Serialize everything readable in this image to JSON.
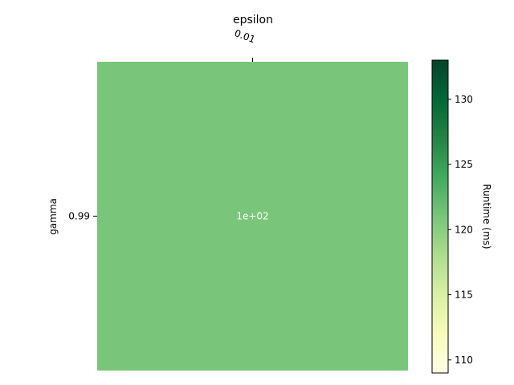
{
  "chart_data": {
    "type": "heatmap",
    "title": "epsilon",
    "xlabel": "epsilon",
    "ylabel": "gamma",
    "x_categories": [
      "0.01"
    ],
    "y_categories": [
      "0.99"
    ],
    "values": [
      [
        100
      ]
    ],
    "cell_labels": [
      [
        "1e+02"
      ]
    ],
    "colorbar": {
      "label": "Runtime (ms)",
      "cmap": "YlGn",
      "vmin": 109,
      "vmax": 133,
      "ticks": [
        110,
        115,
        120,
        125,
        130
      ],
      "tick_labels": [
        "110",
        "115",
        "120",
        "125",
        "130"
      ]
    },
    "colors": {
      "cell_fill": "#79c67a",
      "cell_text": "#ffffff"
    },
    "x_axis_position": "top",
    "grid": false
  }
}
